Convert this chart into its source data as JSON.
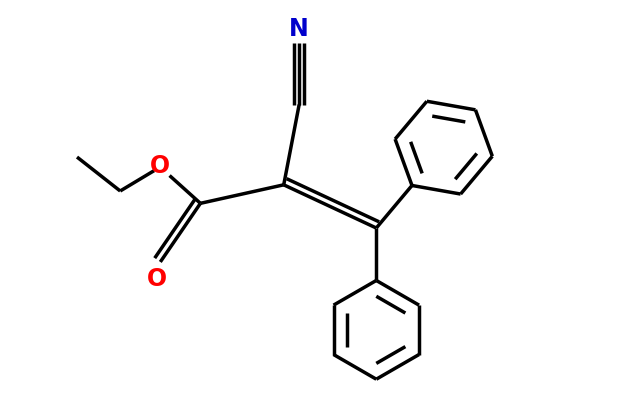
{
  "background_color": "#ffffff",
  "bond_color": "#000000",
  "oxygen_color": "#ff0000",
  "nitrogen_color": "#0000cc",
  "line_width": 2.5,
  "figsize": [
    6.23,
    4.19
  ],
  "dpi": 100,
  "xlim": [
    0,
    10
  ],
  "ylim": [
    0,
    6.7
  ]
}
